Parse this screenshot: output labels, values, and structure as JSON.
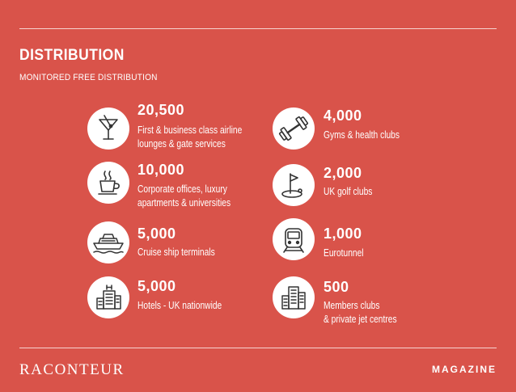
{
  "header": {
    "title": "DISTRIBUTION",
    "subtitle": "MONITORED FREE DISTRIBUTION"
  },
  "items": [
    {
      "number": "20,500",
      "line1": "First & business class airline",
      "line2": "lounges & gate services",
      "icon": "cocktail-icon"
    },
    {
      "number": "10,000",
      "line1": "Corporate offices, luxury",
      "line2": "apartments & universities",
      "icon": "coffee-cup-icon"
    },
    {
      "number": "5,000",
      "line1": "Cruise ship terminals",
      "line2": "",
      "icon": "cruise-ship-icon"
    },
    {
      "number": "5,000",
      "line1": "Hotels - UK nationwide",
      "line2": "",
      "icon": "hotel-icon"
    },
    {
      "number": "4,000",
      "line1": "Gyms & health clubs",
      "line2": "",
      "icon": "dumbbell-icon"
    },
    {
      "number": "2,000",
      "line1": "UK golf clubs",
      "line2": "",
      "icon": "golf-flag-icon"
    },
    {
      "number": "1,000",
      "line1": "Eurotunnel",
      "line2": "",
      "icon": "train-icon"
    },
    {
      "number": "500",
      "line1": "Members clubs",
      "line2": "& private jet centres",
      "icon": "buildings-icon"
    }
  ],
  "footer": {
    "logo": "RACONTEUR",
    "label": "MAGAZINE"
  },
  "colors": {
    "background": "#d9534a",
    "icon_fill": "#ffffff",
    "icon_stroke": "#333333",
    "text": "#ffffff"
  }
}
